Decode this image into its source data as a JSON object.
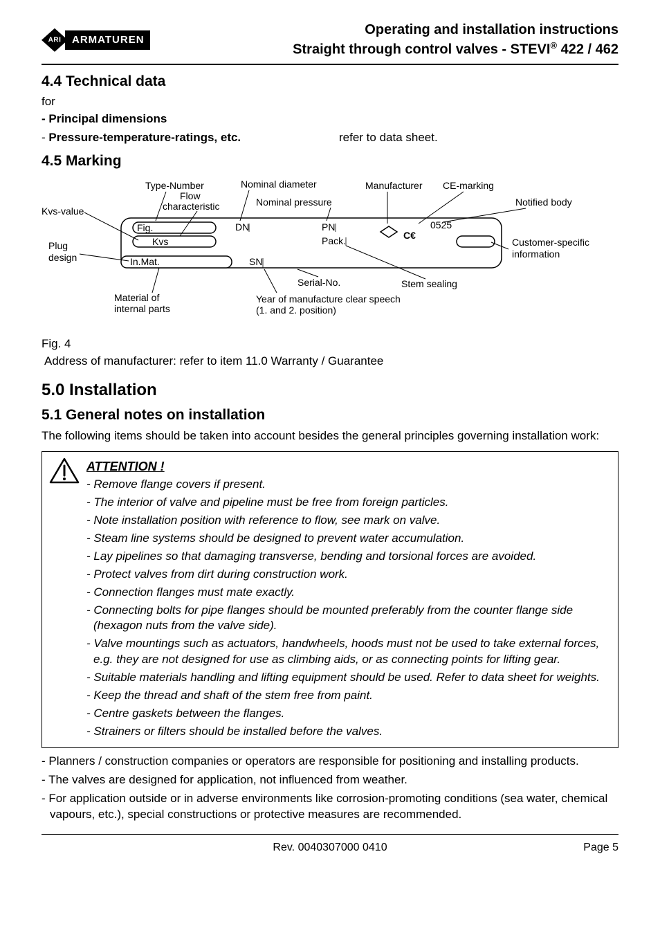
{
  "header": {
    "logo_text": "ARMATUREN",
    "title_line1": "Operating and installation instructions",
    "title_line2_a": "Straight through control valves - STEVI",
    "title_line2_sup": "®",
    "title_line2_b": " 422 / 462"
  },
  "s44": {
    "heading": "4.4  Technical data",
    "for": "for",
    "pd": "- Principal dimensions",
    "ptr": "- Pressure-temperature-ratings, etc.",
    "refer": "refer to data sheet."
  },
  "s45": {
    "heading": "4.5  Marking"
  },
  "diagram": {
    "labels": {
      "kvs_value": "Kvs-value",
      "plug_design_1": "Plug",
      "plug_design_2": "design",
      "type_number": "Type-Number",
      "flow_char_1": "Flow",
      "flow_char_2": "characteristic",
      "nominal_diameter": "Nominal diameter",
      "nominal_pressure": "Nominal pressure",
      "manufacturer": "Manufacturer",
      "ce_marking": "CE-marking",
      "notified_body": "Notified body",
      "customer_info_1": "Customer-specific",
      "customer_info_2": "information",
      "stem_sealing": "Stem sealing",
      "serial_no": "Serial-No.",
      "year_mfg_1": "Year of manufacture clear speech",
      "year_mfg_2": "(1. and 2. position)",
      "material_1": "Material of",
      "material_2": "internal parts"
    },
    "plate": {
      "fig": "Fig.",
      "kvs": "Kvs",
      "inmat": "In.Mat.",
      "dn": "DN",
      "sn": "SN",
      "pn": "PN",
      "pack": "Pack.",
      "ce_num": "0525"
    },
    "styling": {
      "plate_stroke": "#000000",
      "plate_fill": "#ffffff",
      "label_font_size": 14,
      "plate_font_size": 12,
      "line_color": "#000000"
    }
  },
  "fig4": "Fig. 4",
  "address": "Address of manufacturer: refer to item 11.0 Warranty / Guarantee",
  "s50": {
    "heading": "5.0  Installation"
  },
  "s51": {
    "heading": "5.1  General notes on installation",
    "intro": "The following items should be taken into account besides the general principles governing installation work:"
  },
  "attention": {
    "title": "ATTENTION !",
    "items": [
      "- Remove flange covers if present.",
      "- The interior of valve and pipeline must be free from foreign particles.",
      "- Note installation position with reference to flow, see mark on valve.",
      "- Steam line systems should be designed to prevent water accumulation.",
      "- Lay pipelines so that damaging transverse, bending and torsional forces are avoided.",
      "- Protect valves from dirt during construction work.",
      "- Connection flanges must mate exactly.",
      "- Connecting bolts for pipe flanges should be mounted preferably from the counter flange side (hexagon nuts from the valve side).",
      "-  Valve mountings such as actuators, handwheels, hoods must not be used to take external forces, e.g. they are not designed for use as climbing aids, or as connecting points for lifting gear.",
      "- Suitable materials handling and lifting equipment should be used. Refer to data sheet for weights.",
      "- Keep the thread and shaft of the stem free from paint.",
      "- Centre gaskets between the flanges.",
      "- Strainers or filters should be installed before the valves."
    ]
  },
  "post_box": {
    "items": [
      "- Planners / construction companies or operators are responsible for positioning and installing products.",
      "- The valves are designed for application, not influenced from weather.",
      "- For application outside or in adverse environments like corrosion-promoting conditions (sea water, chemical vapours, etc.), special constructions or protective measures are recommended."
    ]
  },
  "footer": {
    "rev": "Rev. 0040307000 0410",
    "page": "Page 5"
  }
}
